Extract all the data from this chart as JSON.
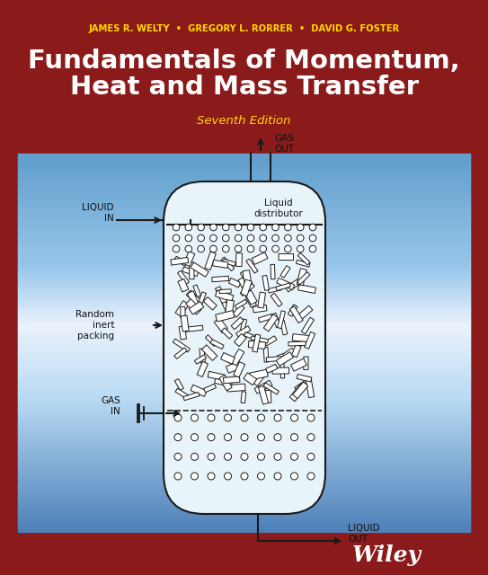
{
  "bg_dark_red": "#8B1A1A",
  "authors": "JAMES R. WELTY  •  GREGORY L. RORRER  •  DAVID G. FOSTER",
  "title_line1": "Fundamentals of Momentum,",
  "title_line2": "Heat and Mass Transfer",
  "edition": "Seventh Edition",
  "publisher": "Wiley",
  "author_color": "#FFD700",
  "title_color": "#FFFFFF",
  "edition_color": "#FFD700",
  "wiley_color": "#FFFFFF",
  "diagram_line": "#1A1A1A",
  "diagram_fill": "#E8F4FA"
}
